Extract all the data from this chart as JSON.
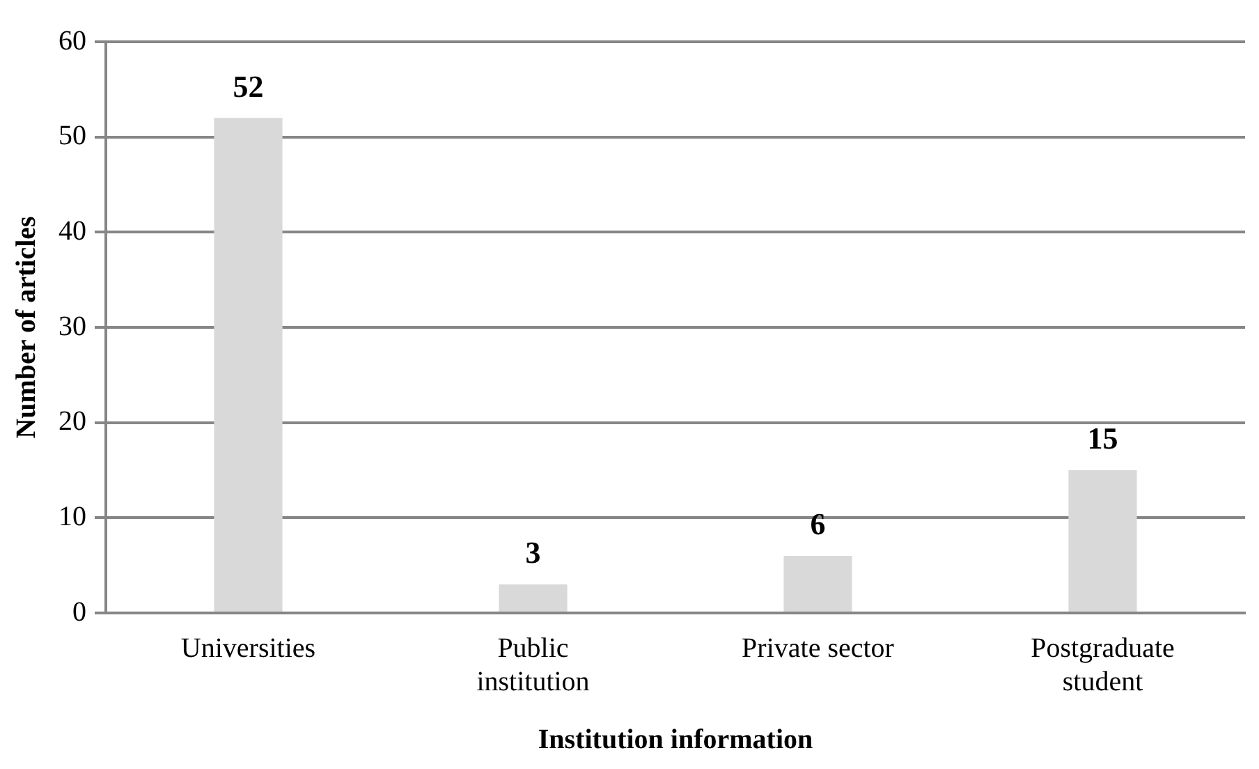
{
  "chart_data": {
    "type": "bar",
    "xlabel": "Institution information",
    "ylabel": "Number of articles",
    "categories": [
      "Universities",
      "Public institution",
      "Private sector",
      "Postgraduate student"
    ],
    "values": [
      52,
      3,
      6,
      15
    ],
    "color": "#d9d9d9",
    "ylim": [
      0,
      60
    ],
    "yticks": [
      0,
      10,
      20,
      30,
      40,
      50,
      60
    ],
    "grid": "y",
    "data_labels": true
  }
}
